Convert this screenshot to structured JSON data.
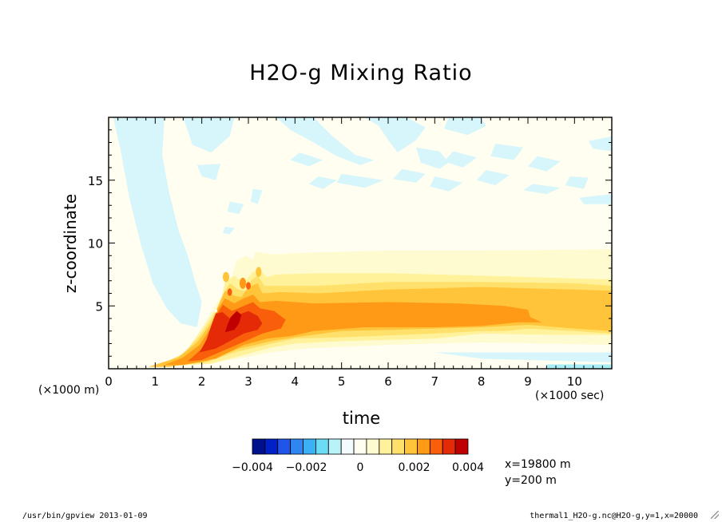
{
  "chart_data": {
    "type": "heatmap",
    "title": "H2O-g Mixing Ratio",
    "xlabel": "time",
    "ylabel": "z-coordinate",
    "x_unit_label": "(×1000 sec)",
    "y_unit_label": "(×1000 m)",
    "xlim": [
      0,
      10.8
    ],
    "ylim": [
      0,
      20
    ],
    "x_ticks": [
      0,
      1,
      2,
      3,
      4,
      5,
      6,
      7,
      8,
      9,
      10
    ],
    "y_ticks": [
      5,
      10,
      15
    ],
    "colorbar": {
      "colors": [
        "#000f8c",
        "#0020c8",
        "#1f55e8",
        "#2f86f0",
        "#3bb0f5",
        "#6cdcf4",
        "#b9f2f9",
        "#f4fbff",
        "#fffef0",
        "#fffbd0",
        "#fff29a",
        "#ffe06a",
        "#ffc43a",
        "#ff9a16",
        "#f95f0a",
        "#e52a07",
        "#c00000"
      ],
      "tick_values": [
        -0.004,
        -0.002,
        0,
        0.002,
        0.004
      ],
      "tick_labels": [
        "−0.004",
        "−0.002",
        "0",
        "0.002",
        "0.004"
      ]
    },
    "fields": [
      {
        "level": "#fffef0",
        "shape": "background",
        "description_value": "≈0"
      },
      {
        "level": "#d6f6fb",
        "value": -0.0005,
        "region": "cool plume 0.1–1.6 ksec rising to top, diagonal bands upper domain"
      },
      {
        "level": "#fffbd0",
        "value": 0.0005,
        "region": "z 2–9.5 km, t 1.5–10.8 ksec"
      },
      {
        "level": "#fff29a",
        "value": 0.001,
        "region": "z 1–7 km, t 1.2–10.8 ksec"
      },
      {
        "level": "#ffe06a",
        "value": 0.0015,
        "region": "z 0.5–6.5 km"
      },
      {
        "level": "#ffc43a",
        "value": 0.002,
        "region": "z 0.5–6.3 km"
      },
      {
        "level": "#ff9a16",
        "value": 0.0025,
        "region": "core layer z 3–5.5 km to t 9 ksec"
      },
      {
        "level": "#f95f0a",
        "value": 0.003,
        "region": "plume t 2.0–3.6 ksec"
      },
      {
        "level": "#e52a07",
        "value": 0.0035,
        "region": "plume core t 2.1–3.3 ksec"
      },
      {
        "level": "#c00000",
        "value": 0.004,
        "region": "max near t 2.5–2.9 ksec, z 3–5 km"
      }
    ]
  },
  "info": {
    "line1": "x=19800 m",
    "line2": "y=200 m"
  },
  "footer": {
    "left": "/usr/bin/gpview  2013-01-09",
    "right": "thermal1_H2O-g.nc@H2O-g,y=1,x=20000"
  }
}
